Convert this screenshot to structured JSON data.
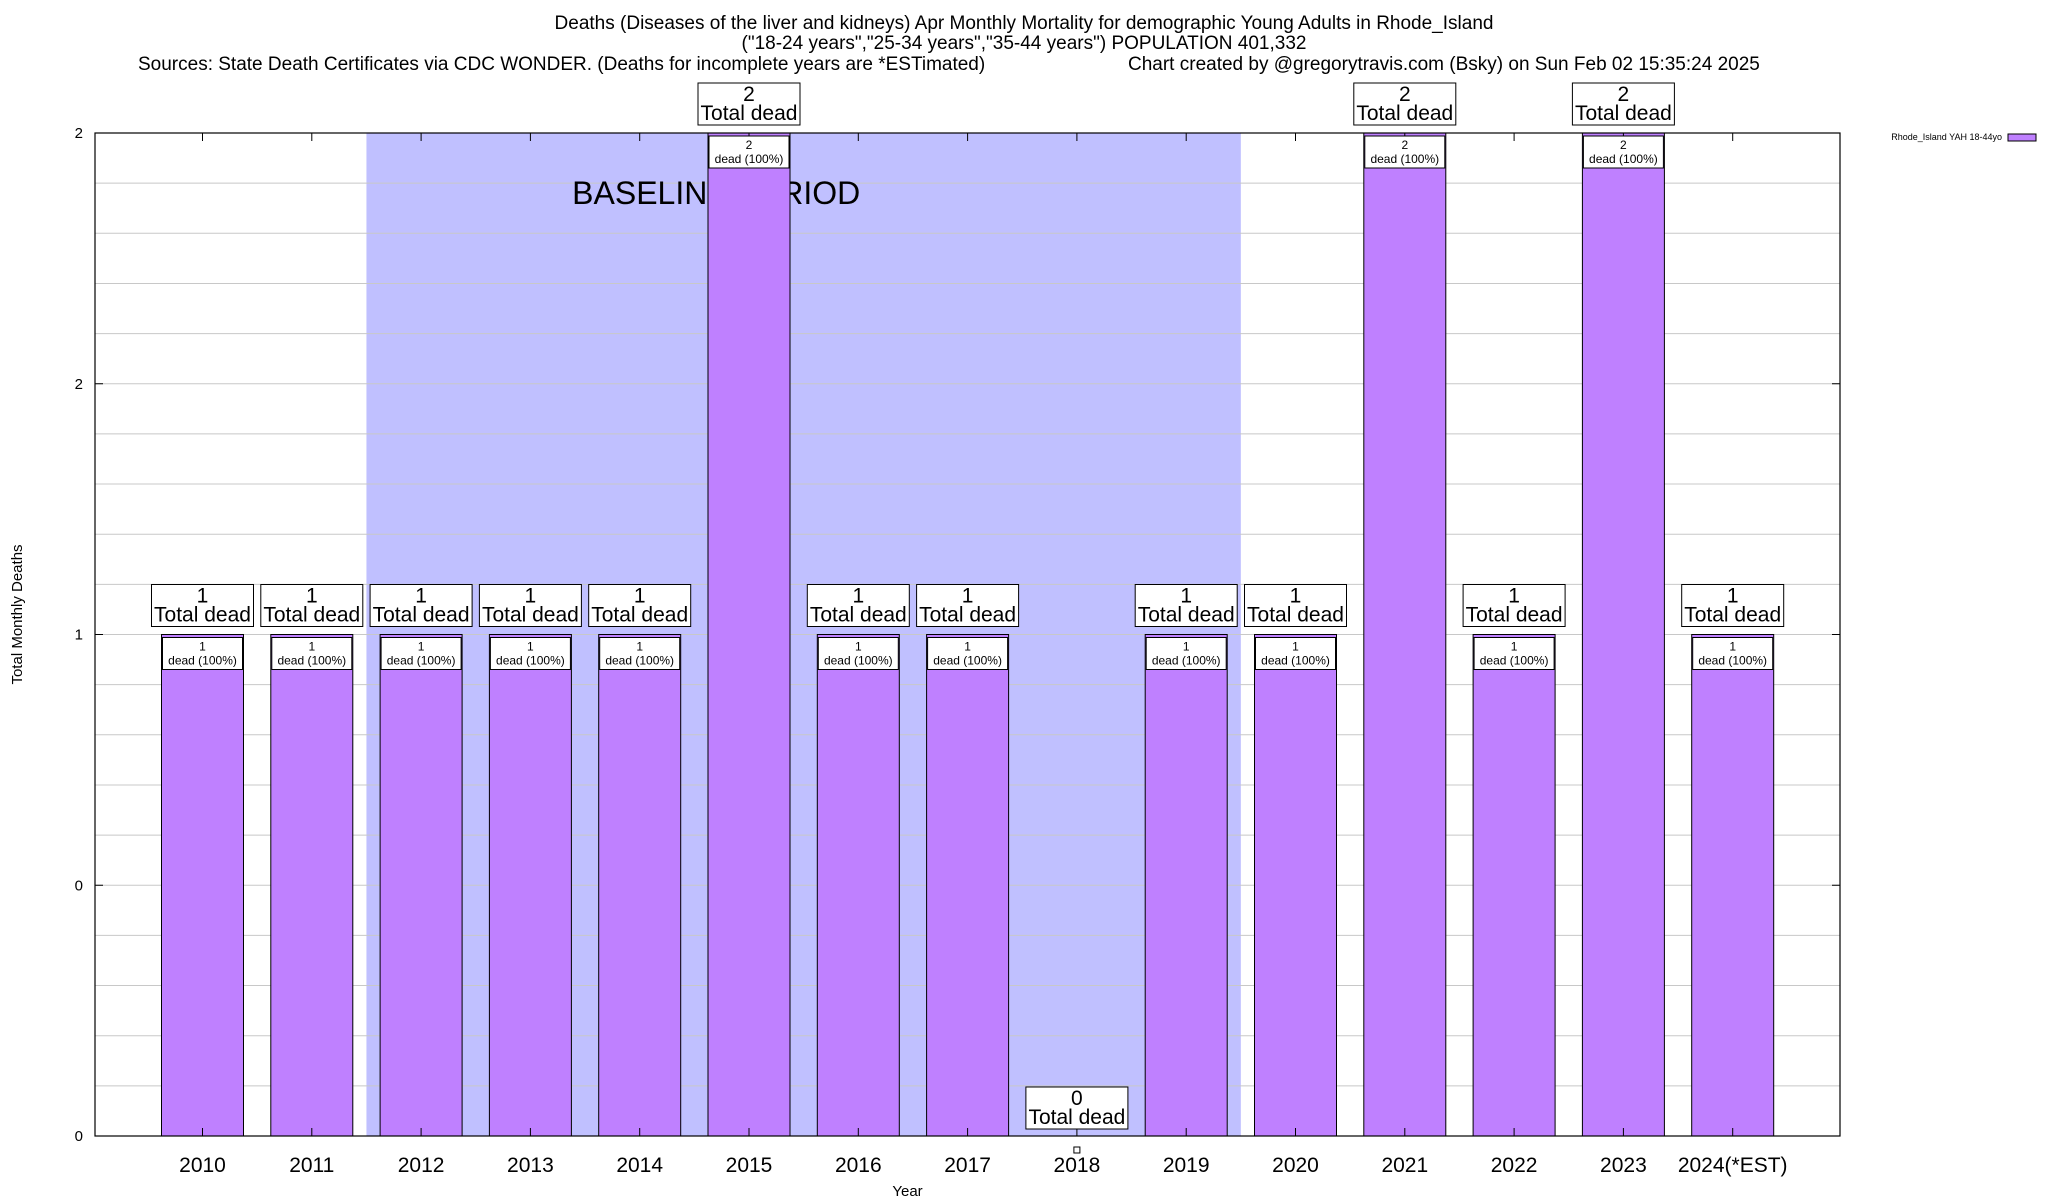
{
  "chart_data": {
    "type": "bar",
    "title_lines": [
      "Deaths (Diseases of the liver and kidneys) Apr Monthly Mortality for demographic Young Adults in Rhode_Island",
      "(\"18-24 years\",\"25-34 years\",\"35-44 years\") POPULATION 401,332"
    ],
    "source_text": "Sources: State Death Certificates via CDC WONDER. (Deaths for incomplete years are *ESTimated)",
    "credit_text": "Chart created by @gregorytravis.com (Bsky) on Sun Feb 02 15:35:24 2025",
    "xlabel": "Year",
    "ylabel": "Total Monthly Deaths",
    "categories": [
      "2010",
      "2011",
      "2012",
      "2013",
      "2014",
      "2015",
      "2016",
      "2017",
      "2018",
      "2019",
      "2020",
      "2021",
      "2022",
      "2023",
      "2024(*EST)"
    ],
    "series": [
      {
        "name": "Rhode_Island YAH 18-44yo",
        "color": "#bf80ff",
        "values": [
          1,
          1,
          1,
          1,
          1,
          2,
          1,
          1,
          0,
          1,
          1,
          2,
          1,
          2,
          1
        ]
      }
    ],
    "total_labels": [
      {
        "count": "1",
        "text": "Total dead"
      },
      {
        "count": "1",
        "text": "Total dead"
      },
      {
        "count": "1",
        "text": "Total dead"
      },
      {
        "count": "1",
        "text": "Total dead"
      },
      {
        "count": "1",
        "text": "Total dead"
      },
      {
        "count": "2",
        "text": "Total dead"
      },
      {
        "count": "1",
        "text": "Total dead"
      },
      {
        "count": "1",
        "text": "Total dead"
      },
      {
        "count": "0",
        "text": "Total dead"
      },
      {
        "count": "1",
        "text": "Total dead"
      },
      {
        "count": "1",
        "text": "Total dead"
      },
      {
        "count": "2",
        "text": "Total dead"
      },
      {
        "count": "1",
        "text": "Total dead"
      },
      {
        "count": "2",
        "text": "Total dead"
      },
      {
        "count": "1",
        "text": "Total dead"
      }
    ],
    "bar_labels": [
      {
        "count": "1",
        "text": "dead (100%)"
      },
      {
        "count": "1",
        "text": "dead (100%)"
      },
      {
        "count": "1",
        "text": "dead (100%)"
      },
      {
        "count": "1",
        "text": "dead (100%)"
      },
      {
        "count": "1",
        "text": "dead (100%)"
      },
      {
        "count": "2",
        "text": "dead (100%)"
      },
      {
        "count": "1",
        "text": "dead (100%)"
      },
      {
        "count": "1",
        "text": "dead (100%)"
      },
      null,
      {
        "count": "1",
        "text": "dead (100%)"
      },
      {
        "count": "1",
        "text": "dead (100%)"
      },
      {
        "count": "2",
        "text": "dead (100%)"
      },
      {
        "count": "1",
        "text": "dead (100%)"
      },
      {
        "count": "2",
        "text": "dead (100%)"
      },
      {
        "count": "1",
        "text": "dead (100%)"
      }
    ],
    "ylim": [
      0,
      2
    ],
    "y_tick_labels": [
      "0",
      "0",
      "1",
      "2",
      "2"
    ],
    "grid": true,
    "baseline_period": {
      "label": "BASELINE PERIOD",
      "from": "2012",
      "to": "2019",
      "color": "#c0c0ff"
    },
    "legend_position": "top-right"
  }
}
